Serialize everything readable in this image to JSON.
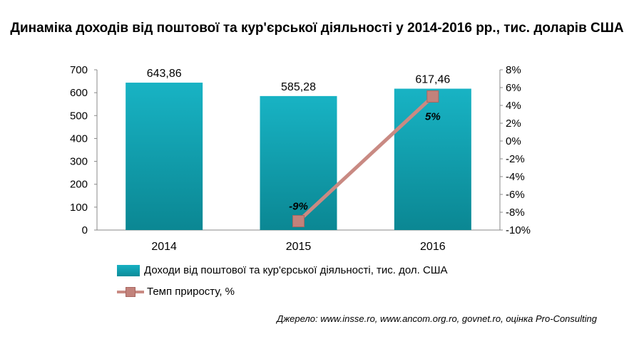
{
  "chart_data": {
    "type": "bar",
    "title": "Динаміка доходів від поштової та кур'єрської діяльності у 2014-2016 рр., тис. доларів США",
    "categories": [
      "2014",
      "2015",
      "2016"
    ],
    "series": [
      {
        "name": "Доходи від поштової та кур'єрської діяльності, тис. дол. США",
        "type": "bar",
        "axis": "left",
        "values": [
          643.86,
          585.28,
          617.46
        ],
        "labels": [
          "643,86",
          "585,28",
          "617,46"
        ],
        "color": "#12a1b1"
      },
      {
        "name": "Темп приросту, %",
        "type": "line",
        "axis": "right",
        "values": [
          null,
          -9,
          5
        ],
        "labels": [
          "",
          "-9%",
          "5%"
        ],
        "color": "#c98a83"
      }
    ],
    "y_left": {
      "min": 0,
      "max": 700,
      "ticks": [
        "0",
        "100",
        "200",
        "300",
        "400",
        "500",
        "600",
        "700"
      ]
    },
    "y_right": {
      "min": -10,
      "max": 8,
      "ticks": [
        "-10%",
        "-8%",
        "-6%",
        "-4%",
        "-2%",
        "0%",
        "2%",
        "4%",
        "6%",
        "8%"
      ]
    },
    "grid": false,
    "legend_position": "bottom"
  },
  "source": "Джерело: www.insse.ro, www.ancom.org.ro, govnet.ro, оцінка Pro-Consulting"
}
